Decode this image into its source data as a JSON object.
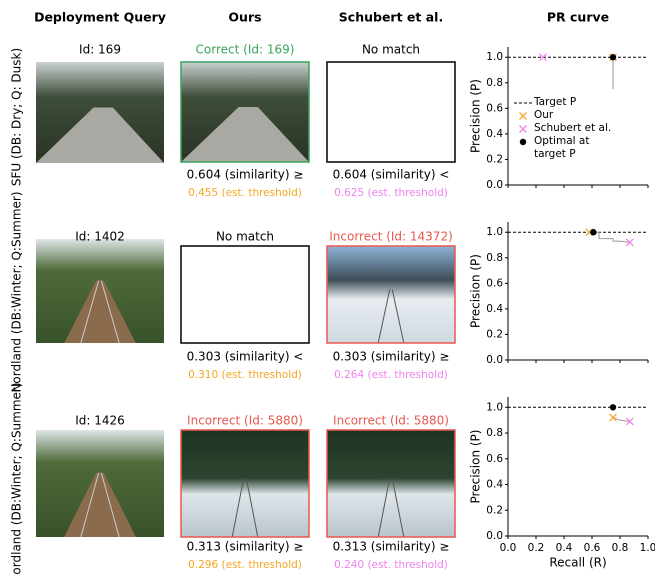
{
  "headers": {
    "query": "Deployment Query",
    "ours": "Ours",
    "schubert": "Schubert et al.",
    "pr": "PR curve"
  },
  "rows": [
    {
      "label": "SFU (DB: Dry; Q: Dusk)",
      "query_id": "Id: 169",
      "ours": {
        "result": "Correct (Id: 169)",
        "color": "#3aa45c",
        "similarity": "0.604 (similarity) ≥",
        "threshold": "0.455 (est. threshold)",
        "threshold_color": "#f5a623"
      },
      "schubert": {
        "result": "No match",
        "color": "#000000",
        "similarity": "0.604 (similarity) <",
        "threshold": "0.625 (est. threshold)",
        "threshold_color": "#ee82ee"
      }
    },
    {
      "label": "Nordland (DB:Winter; Q:Summer)",
      "query_id": "Id: 1402",
      "ours": {
        "result": "No match",
        "color": "#000000",
        "similarity": "0.303 (similarity) <",
        "threshold": "0.310 (est. threshold)",
        "threshold_color": "#f5a623"
      },
      "schubert": {
        "result": "Incorrect (Id: 14372)",
        "color": "#e8584f",
        "similarity": "0.303 (similarity) ≥",
        "threshold": "0.264 (est. threshold)",
        "threshold_color": "#ee82ee"
      }
    },
    {
      "label": "Nordland (DB:Winter; Q:Summer)",
      "query_id": "Id: 1426",
      "ours": {
        "result": "Incorrect (Id: 5880)",
        "color": "#e8584f",
        "similarity": "0.313 (similarity) ≥",
        "threshold": "0.296 (est. threshold)",
        "threshold_color": "#f5a623"
      },
      "schubert": {
        "result": "Incorrect (Id: 5880)",
        "color": "#e8584f",
        "similarity": "0.313 (similarity) ≥",
        "threshold": "0.240 (est. threshold)",
        "threshold_color": "#ee82ee"
      }
    }
  ],
  "chart_data": [
    {
      "type": "scatter",
      "ylabel": "Precision (P)",
      "xlim": [
        0,
        1
      ],
      "ylim": [
        0,
        1.08
      ],
      "xticks": [
        0,
        0.2,
        0.4,
        0.6,
        0.8,
        1
      ],
      "yticks": [
        {
          "value": 0,
          "label": "0.0"
        },
        {
          "value": 0.2,
          "label": "0.2"
        },
        {
          "value": 0.4,
          "label": "0.4"
        },
        {
          "value": 0.6,
          "label": "0.6"
        },
        {
          "value": 0.8,
          "label": "0.8"
        },
        {
          "value": 1,
          "label": "1.0"
        }
      ],
      "legend": "center-left",
      "target": {
        "name": "Target P",
        "value": 1.0,
        "color": "#000000"
      },
      "curve": {
        "color": "#999999",
        "x": [
          0.75,
          0.75
        ],
        "values": [
          1.0,
          0.75
        ]
      },
      "series": [
        {
          "name": "Our",
          "color": "#f5a623",
          "marker": "x",
          "x": [
            0.75
          ],
          "values": [
            1.0
          ]
        },
        {
          "name": "Schubert et al.",
          "color": "#ee82ee",
          "marker": "x",
          "x": [
            0.25
          ],
          "values": [
            1.0
          ]
        },
        {
          "name": "Optimal at target P",
          "color": "#000000",
          "marker": "o",
          "x": [
            0.75
          ],
          "values": [
            1.0
          ]
        }
      ]
    },
    {
      "type": "scatter",
      "ylabel": "Precision (P)",
      "xlim": [
        0,
        1
      ],
      "ylim": [
        0,
        1.08
      ],
      "xticks": [
        0,
        0.2,
        0.4,
        0.6,
        0.8,
        1
      ],
      "yticks": [
        {
          "value": 0,
          "label": "0.0"
        },
        {
          "value": 0.2,
          "label": "0.2"
        },
        {
          "value": 0.4,
          "label": "0.4"
        },
        {
          "value": 0.6,
          "label": "0.6"
        },
        {
          "value": 0.8,
          "label": "0.8"
        },
        {
          "value": 1,
          "label": "1.0"
        }
      ],
      "target": {
        "value": 1.0,
        "color": "#000000"
      },
      "curve": {
        "color": "#999999",
        "x": [
          0.6,
          0.65,
          0.65,
          0.75,
          0.75,
          0.8,
          0.87
        ],
        "values": [
          1.0,
          1.0,
          0.95,
          0.95,
          0.93,
          0.93,
          0.92
        ]
      },
      "series": [
        {
          "color": "#f5a623",
          "marker": "x",
          "x": [
            0.58
          ],
          "values": [
            1.0
          ]
        },
        {
          "color": "#ee82ee",
          "marker": "x",
          "x": [
            0.87
          ],
          "values": [
            0.92
          ]
        },
        {
          "color": "#000000",
          "marker": "o",
          "x": [
            0.61
          ],
          "values": [
            1.0
          ]
        }
      ]
    },
    {
      "type": "scatter",
      "ylabel": "Precision (P)",
      "xlabel": "Recall (R)",
      "xlim": [
        0,
        1
      ],
      "ylim": [
        0,
        1.08
      ],
      "xticks": [
        {
          "value": 0,
          "label": "0.0"
        },
        {
          "value": 0.2,
          "label": "0.2"
        },
        {
          "value": 0.4,
          "label": "0.4"
        },
        {
          "value": 0.6,
          "label": "0.6"
        },
        {
          "value": 0.8,
          "label": "0.8"
        },
        {
          "value": 1,
          "label": "1.0"
        }
      ],
      "yticks": [
        {
          "value": 0,
          "label": "0.0"
        },
        {
          "value": 0.2,
          "label": "0.2"
        },
        {
          "value": 0.4,
          "label": "0.4"
        },
        {
          "value": 0.6,
          "label": "0.6"
        },
        {
          "value": 0.8,
          "label": "0.8"
        },
        {
          "value": 1,
          "label": "1.0"
        }
      ],
      "target": {
        "value": 1.0,
        "color": "#000000"
      },
      "curve": {
        "color": "#999999",
        "x": [
          0.75,
          0.8,
          0.87
        ],
        "values": [
          0.92,
          0.9,
          0.89
        ]
      },
      "series": [
        {
          "color": "#f5a623",
          "marker": "x",
          "x": [
            0.75
          ],
          "values": [
            0.92
          ]
        },
        {
          "color": "#ee82ee",
          "marker": "x",
          "x": [
            0.87
          ],
          "values": [
            0.89
          ]
        },
        {
          "color": "#000000",
          "marker": "o",
          "x": [
            0.75
          ],
          "values": [
            1.0
          ]
        }
      ]
    }
  ]
}
